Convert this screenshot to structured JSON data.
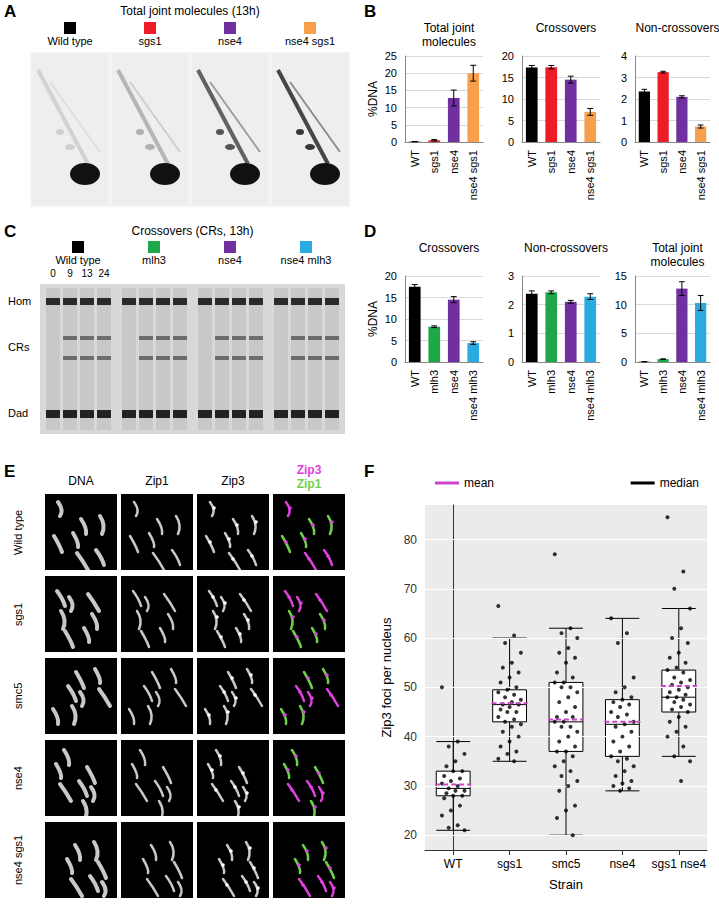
{
  "panel_labels": [
    "A",
    "B",
    "C",
    "D",
    "E",
    "F"
  ],
  "image_panels": {
    "A": {
      "title": "Total joint molecules (13h)",
      "lanes": [
        {
          "label": "Wild type",
          "color": "#000000"
        },
        {
          "label": "sgs1",
          "color": "#ee1c25"
        },
        {
          "label": "nse4",
          "color": "#7030a0"
        },
        {
          "label": "nse4 sgs1",
          "color": "#f6a04d"
        }
      ]
    },
    "C": {
      "title": "Crossovers (CRs, 13h)",
      "lanes": [
        {
          "label": "Wild type",
          "color": "#000000"
        },
        {
          "label": "mlh3",
          "color": "#1fa84a"
        },
        {
          "label": "nse4",
          "color": "#7030a0"
        },
        {
          "label": "nse4 mlh3",
          "color": "#29abe2"
        }
      ],
      "timepoints": [
        "0",
        "9",
        "13",
        "24"
      ],
      "bands": [
        "Hom",
        "CRs",
        "Dad"
      ]
    },
    "E": {
      "columns": [
        "DNA",
        "Zip1",
        "Zip3"
      ],
      "merge": [
        {
          "label": "Zip3",
          "color": "#e040e0"
        },
        {
          "label": "Zip1",
          "color": "#6fd04a"
        }
      ],
      "rows": [
        "Wild type",
        "sgs1",
        "smc5",
        "nse4",
        "nse4 sgs1"
      ]
    }
  },
  "chart_data": [
    {
      "type": "bar",
      "title": "Total joint molecules",
      "ylabel": "%DNA",
      "categories": [
        "WT",
        "sgs1",
        "nse4",
        "nse4 sgs1"
      ],
      "values": [
        0.1,
        0.5,
        12.8,
        20.0
      ],
      "errors": [
        0.05,
        0.2,
        2.3,
        2.3
      ],
      "colors": [
        "#000000",
        "#ee1c25",
        "#7030a0",
        "#f6a04d"
      ],
      "ylim": [
        0,
        25
      ],
      "yticks": [
        0,
        5,
        10,
        15,
        20,
        25
      ],
      "grid": true
    },
    {
      "type": "bar",
      "title": "Crossovers",
      "categories": [
        "WT",
        "sgs1",
        "nse4",
        "nse4 sgs1"
      ],
      "values": [
        17.3,
        17.4,
        14.5,
        7.0
      ],
      "errors": [
        0.5,
        0.4,
        0.8,
        0.8
      ],
      "colors": [
        "#000000",
        "#ee1c25",
        "#7030a0",
        "#f6a04d"
      ],
      "ylim": [
        0,
        20
      ],
      "yticks": [
        0,
        5,
        10,
        15,
        20
      ],
      "grid": true
    },
    {
      "type": "bar",
      "title": "Non-crossovers",
      "categories": [
        "WT",
        "sgs1",
        "nse4",
        "nse4 sgs1"
      ],
      "values": [
        2.35,
        3.25,
        2.1,
        0.72
      ],
      "errors": [
        0.1,
        0.04,
        0.05,
        0.07
      ],
      "colors": [
        "#000000",
        "#ee1c25",
        "#7030a0",
        "#f6a04d"
      ],
      "ylim": [
        0,
        4
      ],
      "yticks": [
        0,
        1,
        2,
        3,
        4
      ],
      "grid": true
    },
    {
      "type": "bar",
      "title": "Crossovers",
      "ylabel": "%DNA",
      "categories": [
        "WT",
        "mlh3",
        "nse4",
        "nse4 mlh3"
      ],
      "values": [
        17.5,
        8.2,
        14.5,
        4.4
      ],
      "errors": [
        0.5,
        0.2,
        0.7,
        0.3
      ],
      "colors": [
        "#000000",
        "#1fa84a",
        "#7030a0",
        "#29abe2"
      ],
      "ylim": [
        0,
        20
      ],
      "yticks": [
        0,
        5,
        10,
        15,
        20
      ],
      "grid": true
    },
    {
      "type": "bar",
      "title": "Non-crossovers",
      "categories": [
        "WT",
        "mlh3",
        "nse4",
        "nse4 mlh3"
      ],
      "values": [
        2.38,
        2.43,
        2.1,
        2.28
      ],
      "errors": [
        0.1,
        0.05,
        0.05,
        0.1
      ],
      "colors": [
        "#000000",
        "#1fa84a",
        "#7030a0",
        "#29abe2"
      ],
      "ylim": [
        0,
        3
      ],
      "yticks": [
        0,
        1,
        2,
        3
      ],
      "grid": true
    },
    {
      "type": "bar",
      "title": "Total joint molecules",
      "categories": [
        "WT",
        "mlh3",
        "nse4",
        "nse4 mlh3"
      ],
      "values": [
        0.05,
        0.5,
        12.8,
        10.3
      ],
      "errors": [
        0.02,
        0.05,
        1.2,
        1.3
      ],
      "colors": [
        "#000000",
        "#1fa84a",
        "#7030a0",
        "#29abe2"
      ],
      "ylim": [
        0,
        15
      ],
      "yticks": [
        0,
        5,
        10,
        15
      ],
      "grid": true
    },
    {
      "type": "box",
      "xlabel": "Strain",
      "ylabel": "Zip3 foci per nucleus",
      "categories": [
        "WT",
        "sgs1",
        "smc5",
        "nse4",
        "sgs1 nse4"
      ],
      "ylim": [
        17,
        87
      ],
      "yticks": [
        20,
        30,
        40,
        50,
        60,
        70,
        80
      ],
      "grid": true,
      "legend": "top",
      "boxes": [
        {
          "min": 21,
          "q1": 28,
          "q3": 33,
          "max": 39
        },
        {
          "min": 35,
          "q1": 43,
          "q3": 49.5,
          "max": 60
        },
        {
          "min": 20,
          "q1": 37,
          "q3": 51,
          "max": 62
        },
        {
          "min": 29,
          "q1": 36,
          "q3": 47.5,
          "max": 64
        },
        {
          "min": 36,
          "q1": 45,
          "q3": 53.5,
          "max": 66
        }
      ],
      "series": [
        {
          "name": "mean",
          "color": "#cc44cc",
          "line_style": "dashed",
          "values": [
            30.3,
            46.8,
            43.5,
            43.0,
            50.3
          ]
        },
        {
          "name": "median",
          "color": "#000000",
          "line_style": "solid",
          "values": [
            29.5,
            46.5,
            43.0,
            42.5,
            48.0
          ]
        }
      ],
      "points": [
        [
          50,
          39,
          38,
          36.5,
          35,
          34,
          33,
          33,
          32,
          31.5,
          31,
          30.5,
          30,
          29.5,
          29,
          29,
          28.5,
          28,
          28,
          27.5,
          26,
          25,
          24,
          22,
          21.5,
          21
        ],
        [
          66.5,
          60.5,
          59,
          57,
          55,
          54,
          53,
          52,
          51,
          50,
          49.5,
          49,
          48.5,
          48,
          47.5,
          47,
          46.5,
          46.5,
          46,
          45.5,
          45,
          45,
          44,
          43.5,
          43,
          42.5,
          42,
          41,
          40,
          39,
          38,
          37,
          36.5,
          35.5,
          35
        ],
        [
          77,
          62,
          61,
          60,
          58,
          57,
          56,
          55,
          53,
          52,
          51,
          51,
          50,
          50,
          49,
          48,
          47,
          46,
          45,
          44,
          44,
          43,
          43,
          42,
          42,
          41,
          40,
          39,
          38,
          37,
          37,
          36,
          35,
          34,
          33,
          32,
          31,
          30,
          29,
          26,
          25,
          23.5,
          20
        ],
        [
          64,
          61,
          59,
          52,
          50,
          49,
          48,
          47.5,
          47,
          46.5,
          46,
          45,
          44.5,
          44,
          43,
          42.5,
          42,
          41,
          40,
          39,
          38,
          37,
          36,
          35.5,
          35,
          34,
          33,
          32,
          31,
          30.5,
          30,
          29.5,
          29
        ],
        [
          84.5,
          73.5,
          70,
          66,
          62,
          60,
          59,
          57,
          56,
          55,
          54,
          53.5,
          53,
          52,
          51.5,
          51,
          50.5,
          50,
          49.5,
          49,
          48.5,
          48,
          48,
          47.5,
          47,
          46.5,
          46,
          45.5,
          45,
          44,
          43,
          42,
          41,
          40,
          38,
          36,
          35,
          31
        ]
      ]
    }
  ]
}
